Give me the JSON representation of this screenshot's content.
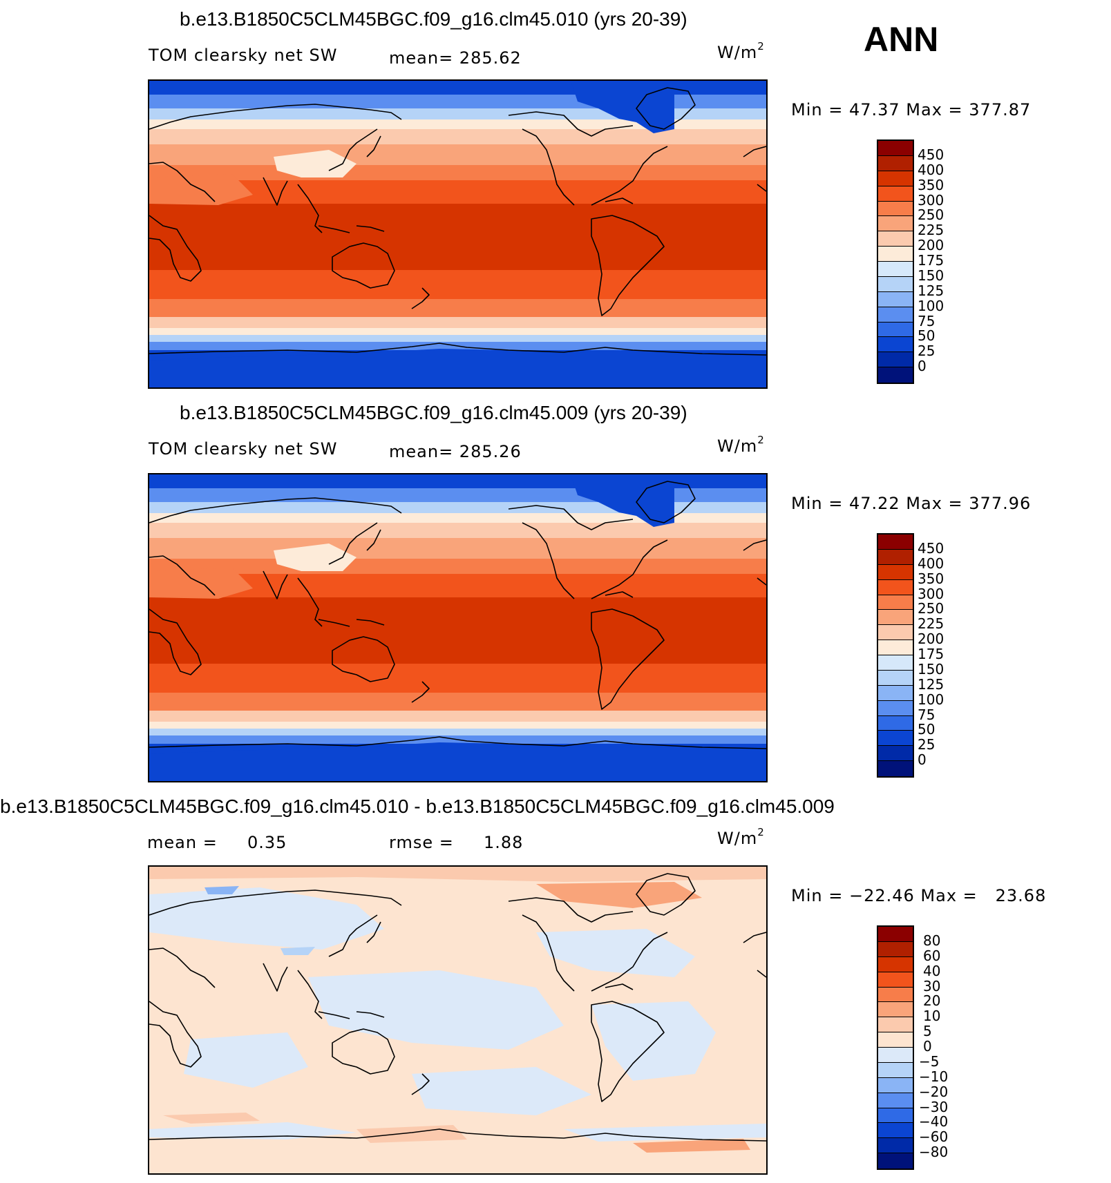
{
  "season": "ANN",
  "panels": [
    {
      "title": "b.e13.B1850C5CLM45BGC.f09_g16.clm45.010 (yrs 20-39)",
      "variable": "TOM clearsky net SW",
      "stat_left": "mean= 285.62",
      "stat_right": "",
      "units": "W/m",
      "units_exp": "2",
      "minmax": "Min =   47.37 Max = 377.87",
      "colorbar": {
        "labels": [
          "450",
          "400",
          "350",
          "300",
          "250",
          "225",
          "200",
          "175",
          "150",
          "125",
          "100",
          "75",
          "50",
          "25",
          "0"
        ],
        "colors": [
          "#8b0000",
          "#b02000",
          "#d63400",
          "#f2541c",
          "#f77d4a",
          "#f9a47a",
          "#fbcaae",
          "#fdebd9",
          "#d6e8fa",
          "#b5d3f7",
          "#8ab4f5",
          "#5b8ef0",
          "#2f6ae6",
          "#0b45d2",
          "#002aa8",
          "#00127a"
        ]
      },
      "map_type": "absolute"
    },
    {
      "title": "b.e13.B1850C5CLM45BGC.f09_g16.clm45.009 (yrs 20-39)",
      "variable": "TOM clearsky net SW",
      "stat_left": "mean= 285.26",
      "stat_right": "",
      "units": "W/m",
      "units_exp": "2",
      "minmax": "Min =   47.22 Max = 377.96",
      "colorbar": {
        "labels": [
          "450",
          "400",
          "350",
          "300",
          "250",
          "225",
          "200",
          "175",
          "150",
          "125",
          "100",
          "75",
          "50",
          "25",
          "0"
        ],
        "colors": [
          "#8b0000",
          "#b02000",
          "#d63400",
          "#f2541c",
          "#f77d4a",
          "#f9a47a",
          "#fbcaae",
          "#fdebd9",
          "#d6e8fa",
          "#b5d3f7",
          "#8ab4f5",
          "#5b8ef0",
          "#2f6ae6",
          "#0b45d2",
          "#002aa8",
          "#00127a"
        ]
      },
      "map_type": "absolute"
    },
    {
      "title": "b.e13.B1850C5CLM45BGC.f09_g16.clm45.010 - b.e13.B1850C5CLM45BGC.f09_g16.clm45.009",
      "variable": "mean =     0.35",
      "stat_left": "rmse =     1.88",
      "stat_right": "",
      "units": "W/m",
      "units_exp": "2",
      "minmax": "Min = −22.46 Max =   23.68",
      "colorbar": {
        "labels": [
          "80",
          "60",
          "40",
          "30",
          "20",
          "10",
          "5",
          "0",
          "−5",
          "−10",
          "−20",
          "−30",
          "−40",
          "−60",
          "−80"
        ],
        "colors": [
          "#8b0000",
          "#b02000",
          "#d63400",
          "#f2541c",
          "#f77d4a",
          "#f9a47a",
          "#fbcaae",
          "#fde4d0",
          "#dce9f9",
          "#b5d3f7",
          "#8ab4f5",
          "#5b8ef0",
          "#2f6ae6",
          "#0b45d2",
          "#002aa8",
          "#00127a"
        ]
      },
      "map_type": "difference"
    }
  ]
}
